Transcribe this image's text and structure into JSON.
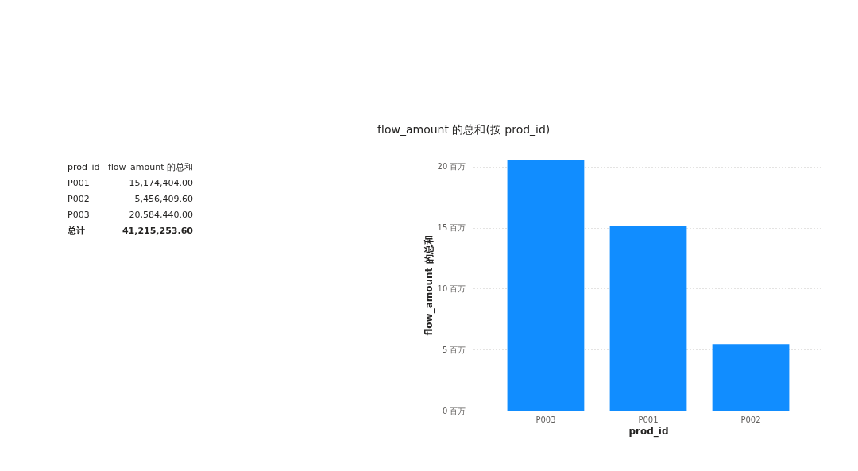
{
  "chart_data": [
    {
      "type": "other",
      "xlabel": "prod_id",
      "ylabel": "flow_amount 的总和",
      "categories": [
        "P001",
        "P002",
        "P003"
      ],
      "value_labels": [
        "15,174,404.00",
        "5,456,409.60",
        "20,584,440.00"
      ],
      "totals": [
        "41,215,253.60"
      ],
      "annotations": [
        "总计"
      ]
    },
    {
      "type": "bar",
      "title": "flow_amount 的总和(按 prod_id)",
      "xlabel": "prod_id",
      "ylabel": "flow_amount 的总和",
      "categories": [
        "P003",
        "P001",
        "P002"
      ],
      "values": [
        20.58,
        15.17,
        5.46
      ],
      "color": "#118dff",
      "ylim": [
        0,
        20.58
      ],
      "yticks": [
        {
          "value": 0,
          "label": "0 百万"
        },
        {
          "value": 5,
          "label": "5 百万"
        },
        {
          "value": 10,
          "label": "10 百万"
        },
        {
          "value": 15,
          "label": "15 百万"
        },
        {
          "value": 20,
          "label": "20 百万"
        }
      ],
      "grid": "y"
    }
  ]
}
